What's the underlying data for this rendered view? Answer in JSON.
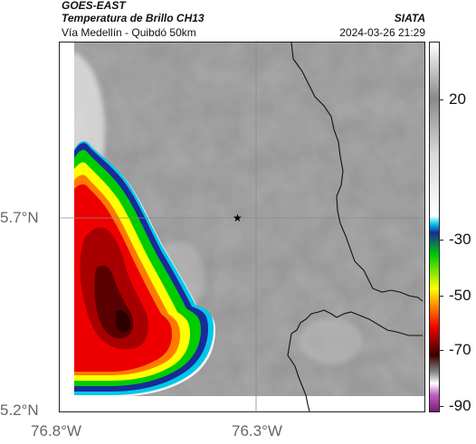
{
  "header": {
    "satellite": "GOES-EAST",
    "product": "Temperatura de Brillo CH13",
    "region": "Vía Medellín - Quibdó 50km",
    "organization": "SIATA",
    "datetime": "2024-03-26 21:29"
  },
  "axes": {
    "lat_labels": [
      "5.7°N",
      "5.2°N"
    ],
    "lon_labels": [
      "76.8°W",
      "76.3°W"
    ]
  },
  "colorbar": {
    "ticks": [
      "20",
      "-30",
      "-50",
      "-70",
      "-90"
    ],
    "stops": [
      {
        "value": 40,
        "color": "#ffffff"
      },
      {
        "value": 20,
        "color": "#8a8a8a"
      },
      {
        "value": 0,
        "color": "#d8d8d8"
      },
      {
        "value": -22,
        "color": "#ffffff"
      },
      {
        "value": -25,
        "color": "#00c8e8"
      },
      {
        "value": -28,
        "color": "#1a2a9a"
      },
      {
        "value": -36,
        "color": "#00cc00"
      },
      {
        "value": -48,
        "color": "#ffff00"
      },
      {
        "value": -55,
        "color": "#ff7a00"
      },
      {
        "value": -62,
        "color": "#ee0000"
      },
      {
        "value": -72,
        "color": "#3a0000"
      },
      {
        "value": -78,
        "color": "#888888"
      },
      {
        "value": -82,
        "color": "#ffffff"
      },
      {
        "value": -86,
        "color": "#c060c0"
      },
      {
        "value": -92,
        "color": "#7a1a7a"
      }
    ]
  },
  "map": {
    "marker": "star-icon",
    "colors": {
      "cloud_gray": "#9a9a9a",
      "border_line": "#111111",
      "grid_line": "#8a8a8a"
    }
  }
}
